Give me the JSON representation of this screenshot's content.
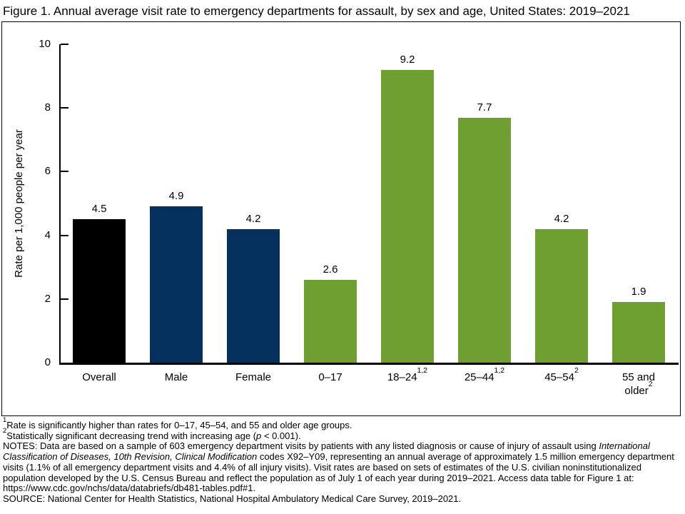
{
  "figure": {
    "title": "Figure 1. Annual average visit rate to emergency departments for assault, by sex and age, United States: 2019–2021"
  },
  "chart_data": {
    "type": "bar",
    "title": "Annual average visit rate to emergency departments for assault, by sex and age, United States: 2019–2021",
    "ylabel": "Rate per 1,000 people per year",
    "xlabel": "",
    "ylim": [
      0,
      10
    ],
    "yticks": [
      0,
      2,
      4,
      6,
      8,
      10
    ],
    "grid": false,
    "legend": false,
    "categories": [
      "Overall",
      "Male",
      "Female",
      "0–17",
      "18–24",
      "25–44",
      "45–54",
      "55 and\nolder"
    ],
    "category_superscripts": [
      "",
      "",
      "",
      "",
      "1,2",
      "1,2",
      "2",
      "2"
    ],
    "values": [
      4.5,
      4.9,
      4.2,
      2.6,
      9.2,
      7.7,
      4.2,
      1.9
    ],
    "value_labels": [
      "4.5",
      "4.9",
      "4.2",
      "2.6",
      "9.2",
      "7.7",
      "4.2",
      "1.9"
    ],
    "bar_slugs": [
      "overall",
      "male",
      "female",
      "0-17",
      "18-24",
      "25-44",
      "45-54",
      "55-and-older"
    ],
    "bar_colors": [
      "#000000",
      "#04305e",
      "#04305e",
      "#6f9e31",
      "#6f9e31",
      "#6f9e31",
      "#6f9e31",
      "#6f9e31"
    ],
    "group_colors": {
      "overall": "#000000",
      "sex": "#04305e",
      "age": "#6f9e31"
    }
  },
  "footnotes": {
    "lines": [
      {
        "name": "footnote-1",
        "segments": [
          {
            "style": "sup",
            "text": "1"
          },
          {
            "style": "normal",
            "text": "Rate is significantly higher than rates for 0–17, 45–54, and 55 and older age groups."
          }
        ]
      },
      {
        "name": "footnote-2",
        "segments": [
          {
            "style": "sup",
            "text": "2"
          },
          {
            "style": "normal",
            "text": "Statistically significant decreasing trend with increasing age ("
          },
          {
            "style": "italic",
            "text": "p"
          },
          {
            "style": "normal",
            "text": " < 0.001)."
          }
        ]
      },
      {
        "name": "notes",
        "segments": [
          {
            "style": "normal",
            "text": "NOTES: Data are based on a sample of 603 emergency department visits by patients with any listed diagnosis or cause of injury of assault using "
          },
          {
            "style": "italic",
            "text": "International Classification of Diseases, 10th Revision, Clinical Modification"
          },
          {
            "style": "normal",
            "text": " codes X92–Y09, representing an annual average of approximately 1.5 million emergency department visits (1.1% of all emergency department visits and 4.4% of all injury visits). Visit rates are based on sets of estimates of the U.S. civilian noninstitutionalized population developed by the U.S. Census Bureau and reflect the population as of July 1 of each year during 2019–2021. Access data table for Figure 1 at: https://www.cdc.gov/nchs/data/databriefs/db481-tables.pdf#1."
          }
        ]
      },
      {
        "name": "source",
        "segments": [
          {
            "style": "normal",
            "text": "SOURCE: National Center for Health Statistics, National Hospital Ambulatory Medical Care Survey, 2019–2021."
          }
        ]
      }
    ]
  }
}
